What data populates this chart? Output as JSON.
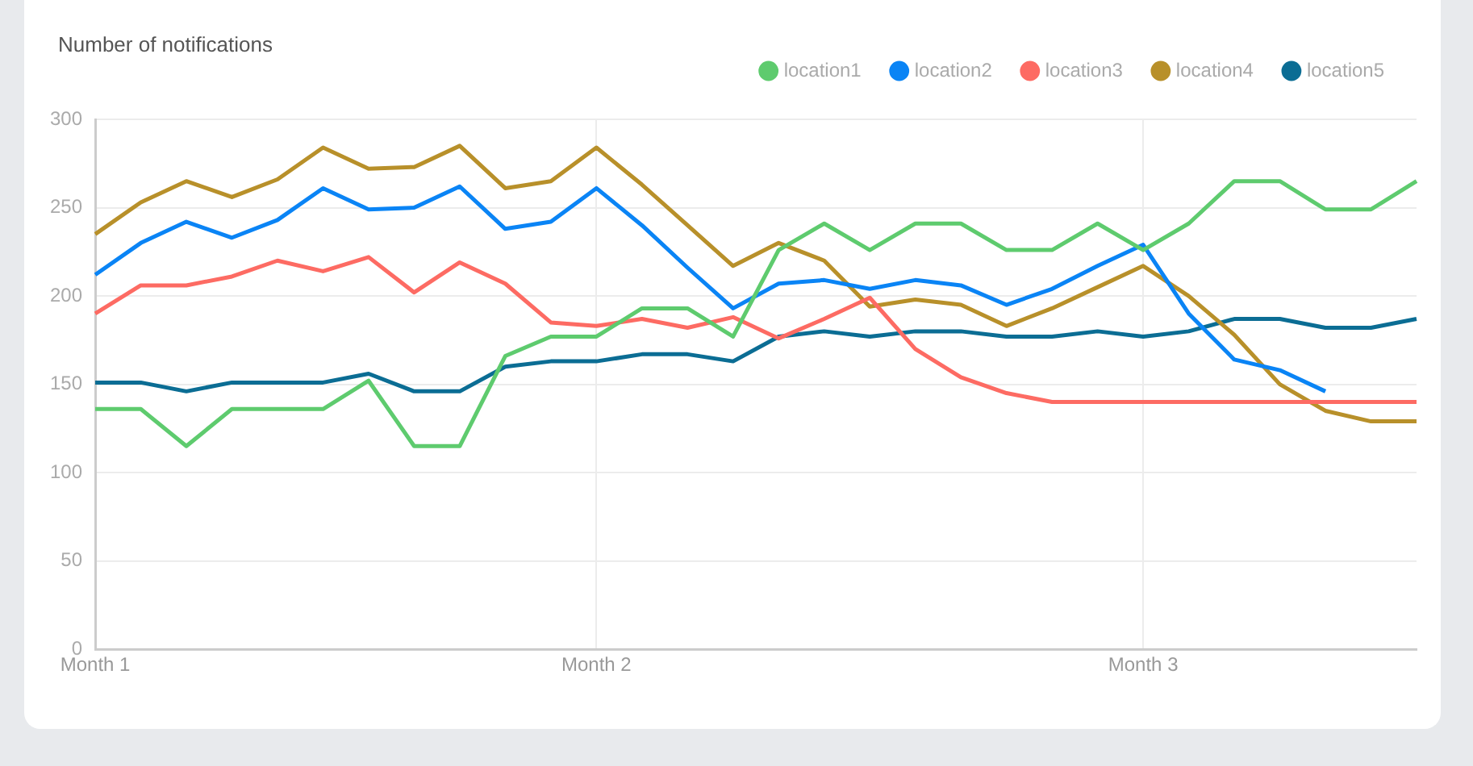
{
  "chart_data": {
    "type": "line",
    "title": "Number of notifications",
    "categories": [
      "Month 1",
      null,
      null,
      null,
      null,
      null,
      null,
      null,
      null,
      null,
      null,
      "Month 2",
      null,
      null,
      null,
      null,
      null,
      null,
      null,
      null,
      null,
      null,
      null,
      "Month 3",
      null,
      null,
      null,
      null,
      null,
      null
    ],
    "ylim": [
      0,
      300
    ],
    "yticks": [
      0,
      50,
      100,
      150,
      200,
      250,
      300
    ],
    "grid": true,
    "legend": "top right",
    "marker": "none",
    "line_style": "solid",
    "series": [
      {
        "name": "location1",
        "color": "#5ecb6e",
        "values": [
          136,
          136,
          115,
          136,
          136,
          136,
          152,
          115,
          115,
          166,
          177,
          177,
          193,
          193,
          177,
          226,
          241,
          226,
          241,
          241,
          226,
          226,
          241,
          226,
          241,
          265,
          265,
          249,
          249,
          265
        ]
      },
      {
        "name": "location2",
        "color": "#0a84f5",
        "values": [
          212,
          230,
          242,
          233,
          243,
          261,
          249,
          250,
          262,
          238,
          242,
          261,
          240,
          216,
          193,
          207,
          209,
          204,
          209,
          206,
          195,
          204,
          217,
          229,
          190,
          164,
          158,
          146,
          null,
          null
        ]
      },
      {
        "name": "location3",
        "color": "#fd6b63",
        "values": [
          190,
          206,
          206,
          211,
          220,
          214,
          222,
          202,
          219,
          207,
          185,
          183,
          187,
          182,
          188,
          176,
          187,
          199,
          170,
          154,
          145,
          140,
          140,
          140,
          140,
          140,
          140,
          140,
          140,
          140
        ]
      },
      {
        "name": "location4",
        "color": "#b8902a",
        "values": [
          235,
          253,
          265,
          256,
          266,
          284,
          272,
          273,
          285,
          261,
          265,
          284,
          263,
          240,
          217,
          230,
          220,
          194,
          198,
          195,
          183,
          193,
          205,
          217,
          200,
          178,
          150,
          135,
          129,
          129
        ]
      },
      {
        "name": "location5",
        "color": "#0b6d94",
        "values": [
          151,
          151,
          146,
          151,
          151,
          151,
          156,
          146,
          146,
          160,
          163,
          163,
          167,
          167,
          163,
          177,
          180,
          177,
          180,
          180,
          177,
          177,
          180,
          177,
          180,
          187,
          187,
          182,
          182,
          187
        ]
      }
    ]
  }
}
